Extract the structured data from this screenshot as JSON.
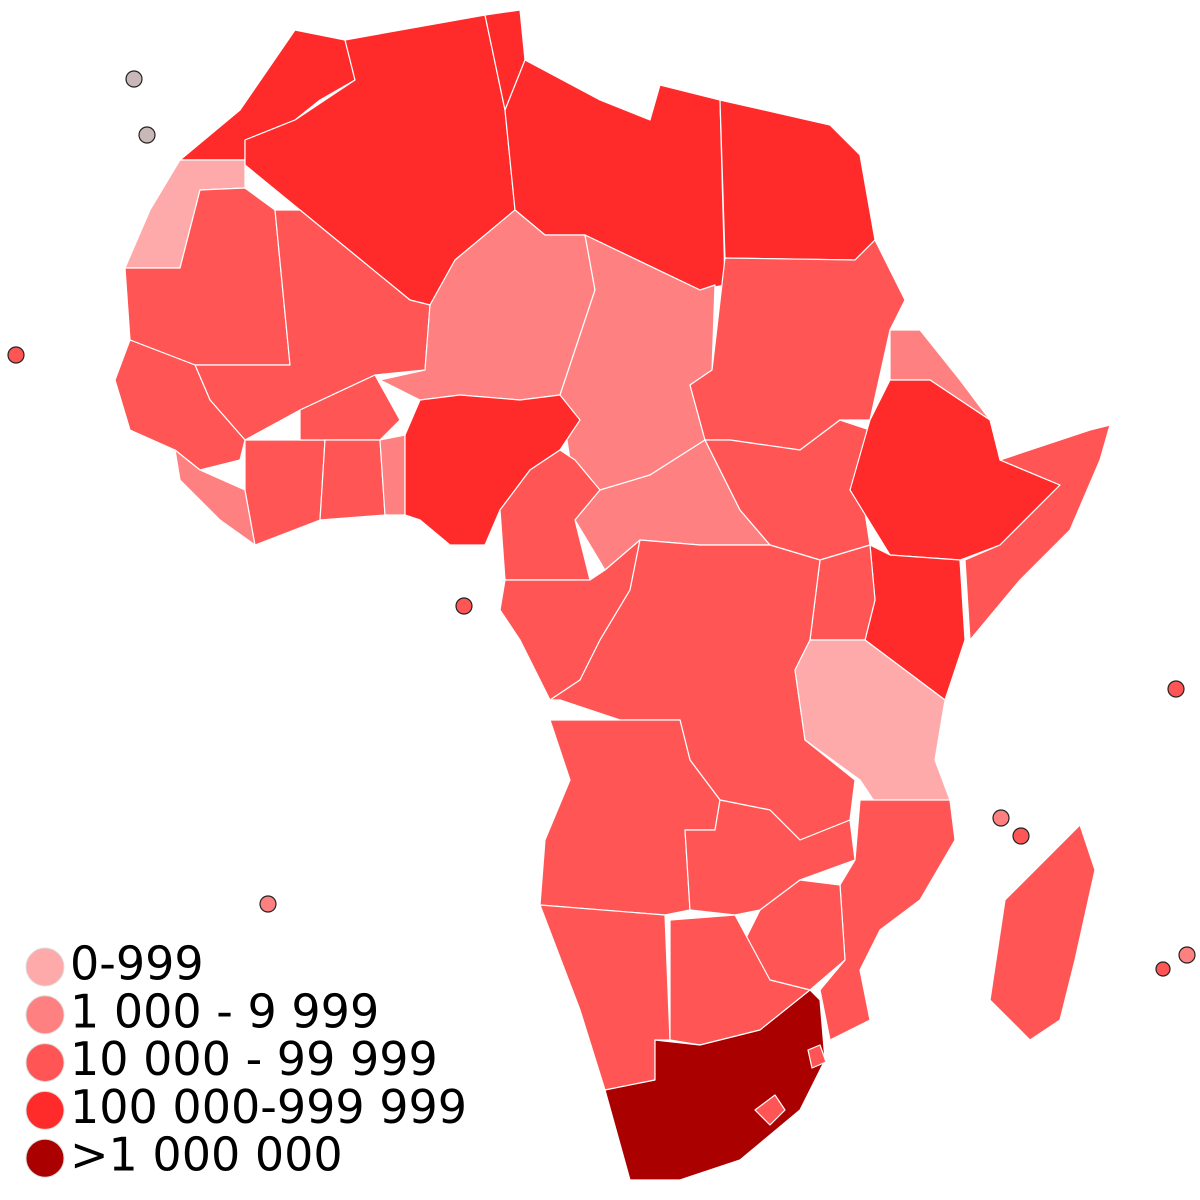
{
  "legend": {
    "items": [
      {
        "label": "0-999",
        "color": "#ffaaaa"
      },
      {
        "label": "1 000 - 9 999",
        "color": "#ff8080"
      },
      {
        "label": "10 000 - 99 999",
        "color": "#ff5555"
      },
      {
        "label": "100 000-999 999",
        "color": "#ff2a2a"
      },
      {
        "label": ">1 000 000",
        "color": "#aa0000"
      }
    ]
  }
}
